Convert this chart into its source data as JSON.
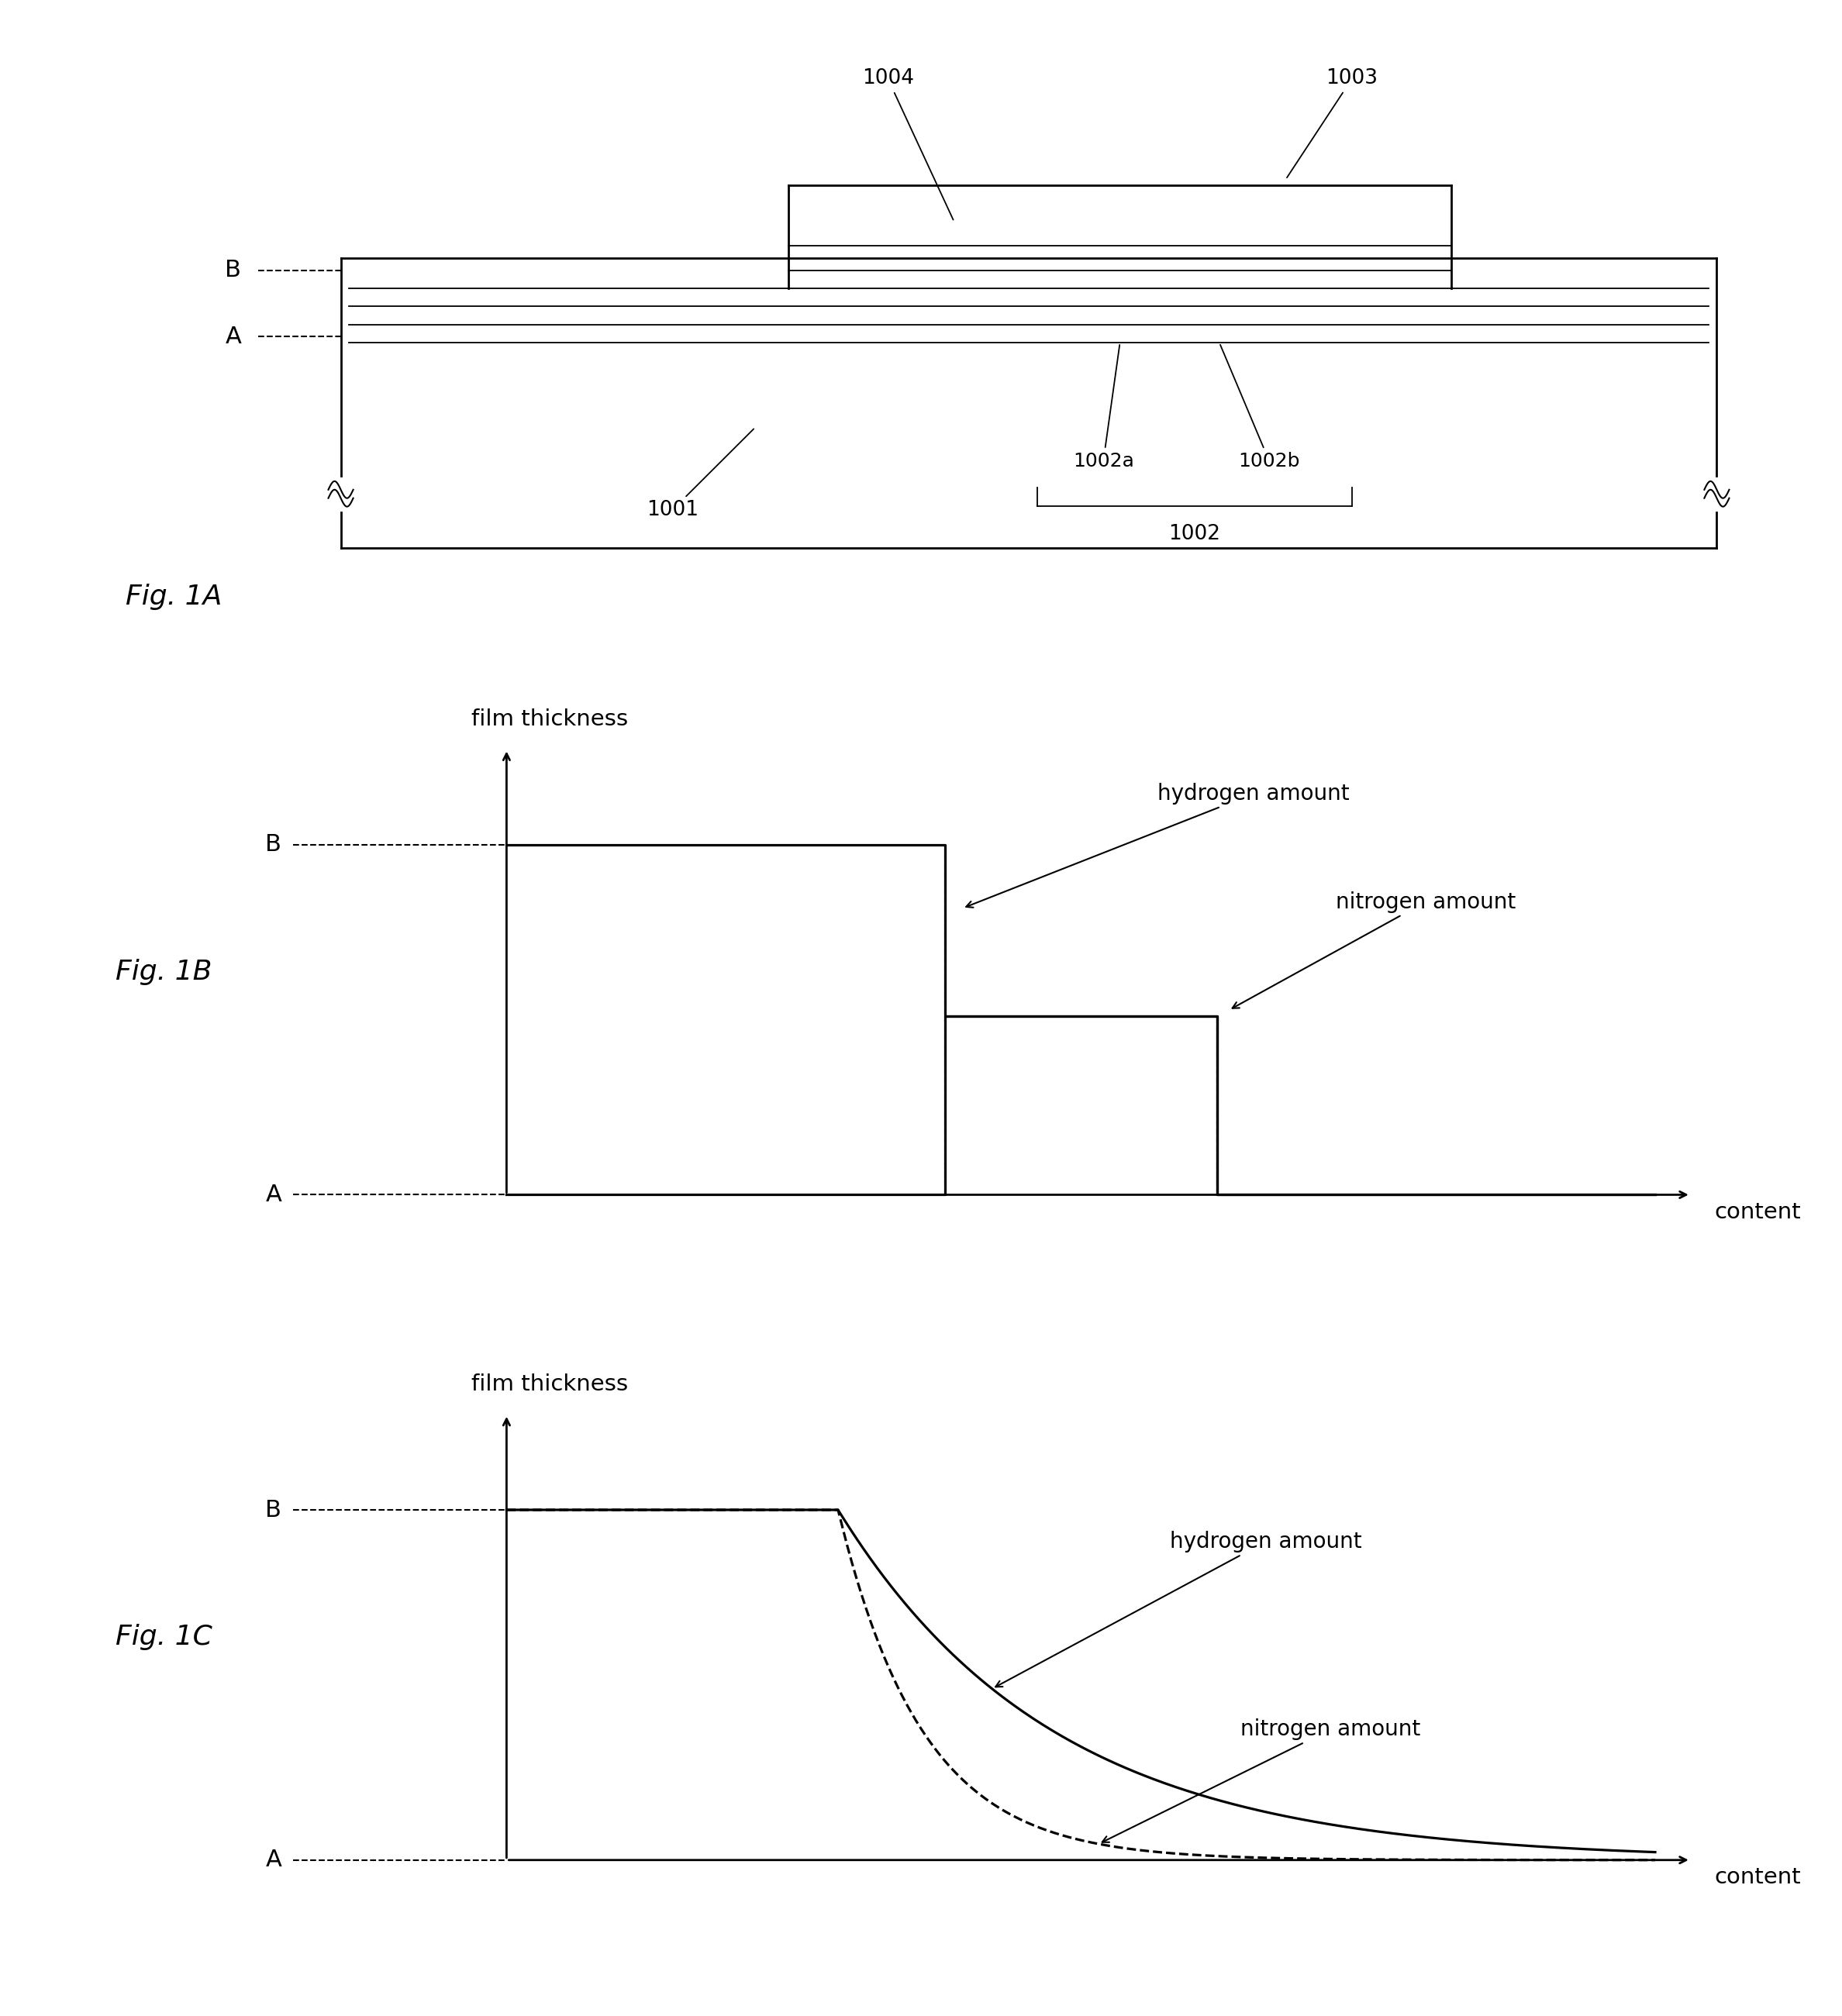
{
  "bg_color": "#ffffff",
  "fig1a": {
    "label": "Fig. 1A",
    "label_1001": "1001",
    "label_1002": "1002",
    "label_1002a": "1002a",
    "label_1002b": "1002b",
    "label_1003": "1003",
    "label_1004": "1004",
    "label_A": "A",
    "label_B": "B"
  },
  "fig1b": {
    "label": "Fig. 1B",
    "ylabel": "film thickness",
    "xlabel": "content",
    "label_A": "A",
    "label_B": "B",
    "ann_hydrogen": "hydrogen amount",
    "ann_nitrogen": "nitrogen amount"
  },
  "fig1c": {
    "label": "Fig. 1C",
    "ylabel": "film thickness",
    "xlabel": "content",
    "label_A": "A",
    "label_B": "B",
    "ann_hydrogen": "hydrogen amount",
    "ann_nitrogen": "nitrogen amount"
  }
}
